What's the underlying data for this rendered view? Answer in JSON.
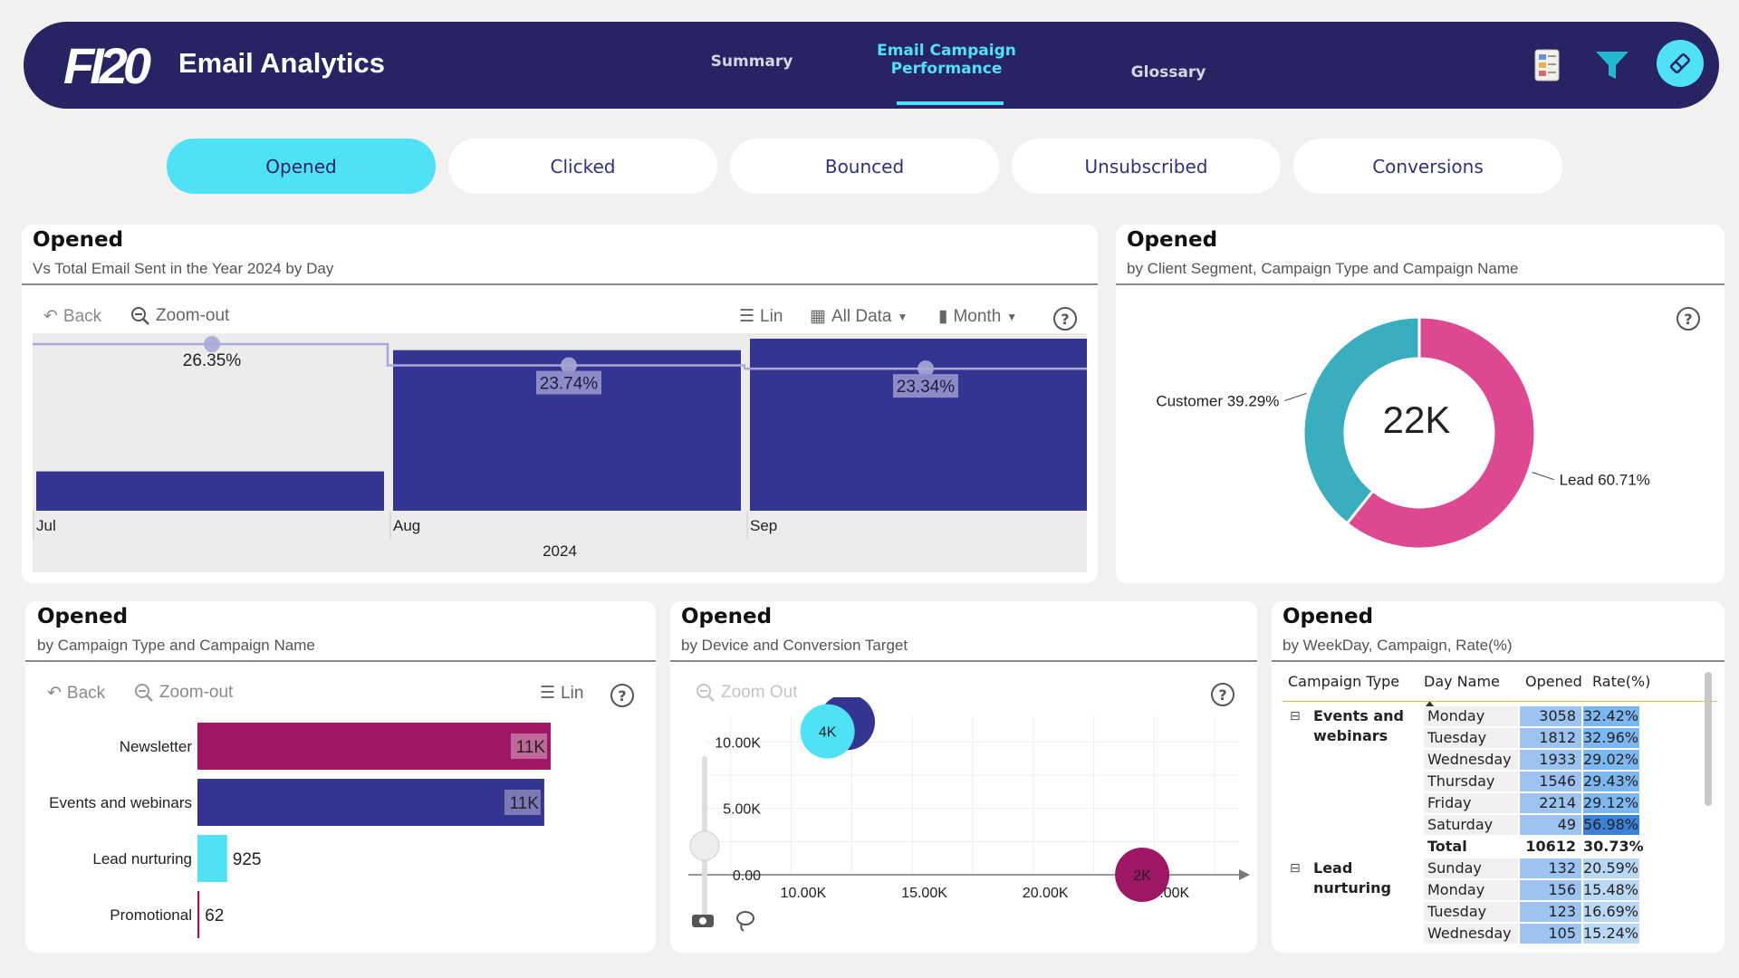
{
  "header": {
    "logo": "FI20",
    "title": "Email Analytics",
    "nav": [
      {
        "label": "Summary"
      },
      {
        "label_line1": "Email Campaign",
        "label_line2": "Performance"
      },
      {
        "label": "Glossary"
      }
    ],
    "icons": [
      "report-icon",
      "filter-icon",
      "eraser-icon"
    ]
  },
  "tabs": [
    {
      "label": "Opened",
      "active": true
    },
    {
      "label": "Clicked"
    },
    {
      "label": "Bounced"
    },
    {
      "label": "Unsubscribed"
    },
    {
      "label": "Conversions"
    }
  ],
  "cards": {
    "day": {
      "title": "Opened",
      "subtitle": "Vs Total Email Sent in the Year 2024 by Day",
      "toolbar": {
        "back": "Back",
        "zoom_out": "Zoom-out",
        "lin": "Lin",
        "all_data": "All Data",
        "month": "Month",
        "help": "?"
      }
    },
    "segment": {
      "title": "Opened",
      "subtitle": "by Client Segment, Campaign Type and Campaign Name",
      "help": "?"
    },
    "campaign": {
      "title": "Opened",
      "subtitle": "by Campaign Type and Campaign Name",
      "toolbar": {
        "back": "Back",
        "zoom_out": "Zoom-out",
        "lin": "Lin",
        "help": "?"
      }
    },
    "device": {
      "title": "Opened",
      "subtitle": "by Device and Conversion Target",
      "toolbar": {
        "zoom_out": "Zoom Out",
        "help": "?"
      }
    },
    "weekday": {
      "title": "Opened",
      "subtitle": "by WeekDay, Campaign, Rate(%)"
    }
  },
  "chart_data": [
    {
      "type": "bar",
      "categories": [
        "Jul",
        "Aug",
        "Sep"
      ],
      "xlabel": "2024",
      "values_relative": [
        0.24,
        0.98,
        1.05
      ],
      "line_series": {
        "values": [
          26.35,
          23.74,
          23.34
        ],
        "labels": [
          "26.35%",
          "23.74%",
          "23.34%"
        ]
      },
      "colors": {
        "bar": "#343491",
        "line": "#a9a8d8",
        "background": "#ececec"
      }
    },
    {
      "type": "pie",
      "center_label": "22K",
      "slices": [
        {
          "name": "Lead",
          "value": 60.71,
          "label": "Lead 60.71%",
          "color": "#de4891"
        },
        {
          "name": "Customer",
          "value": 39.29,
          "label": "Customer 39.29%",
          "color": "#38aebe"
        }
      ]
    },
    {
      "type": "bar",
      "orientation": "horizontal",
      "categories": [
        "Newsletter",
        "Events and webinars",
        "Lead nurturing",
        "Promotional"
      ],
      "values": [
        11000,
        10800,
        925,
        62
      ],
      "labels": [
        "11K",
        "11K",
        "925",
        "62"
      ],
      "colors": [
        "#9e1765",
        "#343491",
        "#4fe2f6",
        "#9e1765"
      ]
    },
    {
      "type": "scatter",
      "x_ticks": [
        "10.00K",
        "15.00K",
        "20.00K",
        "25.00K"
      ],
      "y_ticks": [
        "0.00",
        "5.00K",
        "10.00K"
      ],
      "xlim": [
        6000,
        28000
      ],
      "ylim": [
        0,
        12000
      ],
      "points": [
        {
          "x": 11800,
          "y": 11500,
          "label": "",
          "color": "#343491"
        },
        {
          "x": 11000,
          "y": 10800,
          "label": "4K",
          "color": "#4fe2f6"
        },
        {
          "x": 24000,
          "y": 0,
          "label": "2K",
          "color": "#9e1765"
        }
      ]
    },
    {
      "type": "table",
      "columns": [
        "Campaign Type",
        "Day Name",
        "Opened",
        "Rate(%)"
      ],
      "groups": [
        {
          "name_line1": "Events and",
          "name_line2": "webinars",
          "rows": [
            {
              "day": "Monday",
              "opened": "3058",
              "rate": "32.42%"
            },
            {
              "day": "Tuesday",
              "opened": "1812",
              "rate": "32.96%"
            },
            {
              "day": "Wednesday",
              "opened": "1933",
              "rate": "29.02%"
            },
            {
              "day": "Thursday",
              "opened": "1546",
              "rate": "29.43%"
            },
            {
              "day": "Friday",
              "opened": "2214",
              "rate": "29.12%"
            },
            {
              "day": "Saturday",
              "opened": "49",
              "rate": "56.98%"
            }
          ],
          "total": {
            "label": "Total",
            "opened": "10612",
            "rate": "30.73%"
          }
        },
        {
          "name_line1": "Lead",
          "name_line2": "nurturing",
          "rows": [
            {
              "day": "Sunday",
              "opened": "132",
              "rate": "20.59%"
            },
            {
              "day": "Monday",
              "opened": "156",
              "rate": "15.48%"
            },
            {
              "day": "Tuesday",
              "opened": "123",
              "rate": "16.69%"
            },
            {
              "day": "Wednesday",
              "opened": "105",
              "rate": "15.24%"
            }
          ]
        }
      ]
    }
  ]
}
